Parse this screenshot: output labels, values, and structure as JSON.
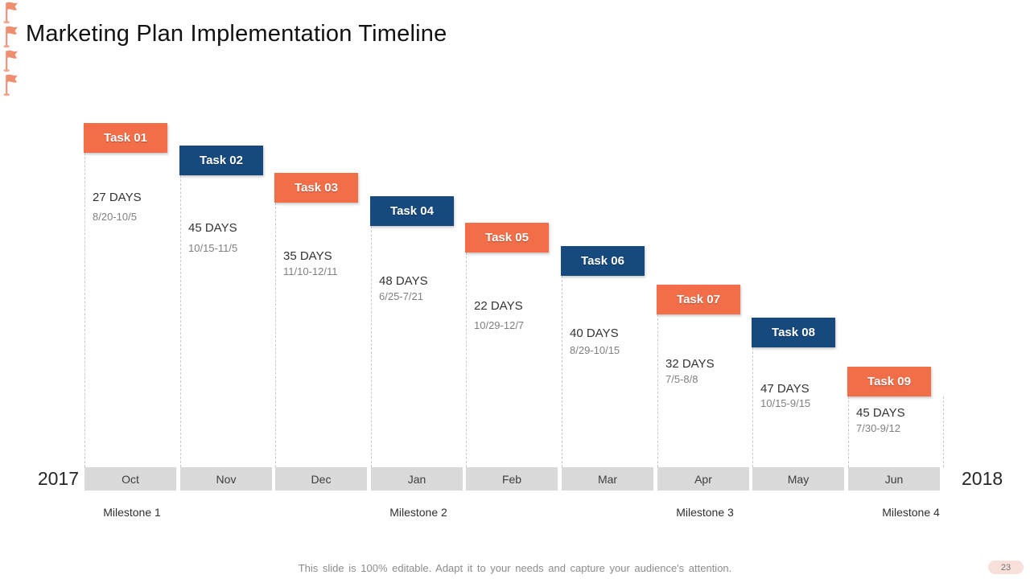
{
  "slide": {
    "title": "Marketing Plan Implementation Timeline",
    "footer": "This slide is 100% editable. Adapt it to your needs and capture your audience's attention.",
    "page_number": "23"
  },
  "colors": {
    "task_orange": "#f26e49",
    "task_navy": "#16497d",
    "month_bar_bg": "#d9d9d9",
    "flag_salmon": "#ef8e6e",
    "days_text": "#333333",
    "date_text": "#7f7f7f",
    "footer_text": "#8c8c8c",
    "badge_bg": "#f8dfda"
  },
  "chart_data": {
    "type": "gantt-timeline",
    "title": "Marketing Plan Implementation Timeline",
    "year_left": "2017",
    "year_right": "2018",
    "months": [
      "Oct",
      "Nov",
      "Dec",
      "Jan",
      "Feb",
      "Mar",
      "Apr",
      "May",
      "Jun"
    ],
    "tasks": [
      {
        "label": "Task 01",
        "duration_days": 27,
        "days": "27 DAYS",
        "dates": "8/20-10/5",
        "color": "orange",
        "month_index": 0
      },
      {
        "label": "Task 02",
        "duration_days": 45,
        "days": "45 DAYS",
        "dates": "10/15-11/5",
        "color": "navy",
        "month_index": 1
      },
      {
        "label": "Task 03",
        "duration_days": 35,
        "days": "35 DAYS",
        "dates": "11/10-12/11",
        "color": "orange",
        "month_index": 2
      },
      {
        "label": "Task 04",
        "duration_days": 48,
        "days": "48 DAYS",
        "dates": "6/25-7/21",
        "color": "navy",
        "month_index": 3
      },
      {
        "label": "Task 05",
        "duration_days": 22,
        "days": "22 DAYS",
        "dates": "10/29-12/7",
        "color": "orange",
        "month_index": 4
      },
      {
        "label": "Task 06",
        "duration_days": 40,
        "days": "40 DAYS",
        "dates": "8/29-10/15",
        "color": "navy",
        "month_index": 5
      },
      {
        "label": "Task 07",
        "duration_days": 32,
        "days": "32 DAYS",
        "dates": "7/5-8/8",
        "color": "orange",
        "month_index": 6
      },
      {
        "label": "Task 08",
        "duration_days": 47,
        "days": "47 DAYS",
        "dates": "10/15-9/15",
        "color": "navy",
        "month_index": 7
      },
      {
        "label": "Task 09",
        "duration_days": 45,
        "days": "45 DAYS",
        "dates": "7/30-9/12",
        "color": "orange",
        "month_index": 8
      }
    ],
    "milestones": [
      {
        "label": "Milestone 1",
        "icon": "flag",
        "month_index": 0
      },
      {
        "label": "Milestone 2",
        "icon": "flag",
        "month_index": 3
      },
      {
        "label": "Milestone 3",
        "icon": "flag",
        "month_index": 6
      },
      {
        "label": "Milestone 4",
        "icon": "flag",
        "month_index": 8
      }
    ]
  }
}
